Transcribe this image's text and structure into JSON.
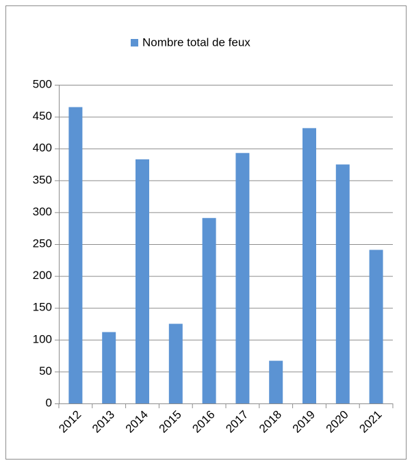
{
  "chart_data": {
    "type": "bar",
    "categories": [
      "2012",
      "2013",
      "2014",
      "2015",
      "2016",
      "2017",
      "2018",
      "2019",
      "2020",
      "2021"
    ],
    "series": [
      {
        "name": "Nombre total de feux",
        "color": "#5b93d3",
        "values": [
          465,
          112,
          383,
          125,
          291,
          393,
          67,
          432,
          375,
          241
        ]
      }
    ],
    "ylim": [
      0,
      500
    ],
    "yticks": [
      0,
      50,
      100,
      150,
      200,
      250,
      300,
      350,
      400,
      450,
      500
    ],
    "grid": true,
    "legend": "top"
  }
}
